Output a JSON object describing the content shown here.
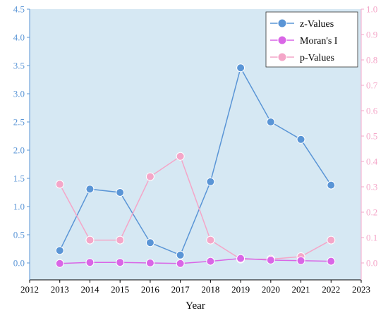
{
  "chart_data": {
    "type": "line",
    "xlabel": "Year",
    "x": [
      2013,
      2014,
      2015,
      2016,
      2017,
      2018,
      2019,
      2020,
      2021,
      2022
    ],
    "xlim": [
      2012,
      2023
    ],
    "x_ticks": [
      2012,
      2013,
      2014,
      2015,
      2016,
      2017,
      2018,
      2019,
      2020,
      2021,
      2022,
      2023
    ],
    "y_left": {
      "lim": [
        -0.3,
        4.5
      ],
      "ticks": [
        "0.0",
        "0.5",
        "1.0",
        "1.5",
        "2.0",
        "2.5",
        "3.0",
        "3.5",
        "4.0",
        "4.5"
      ],
      "color": "#5a95d6"
    },
    "y_right": {
      "lim": [
        -0.0667,
        1.0
      ],
      "ticks": [
        "0.0",
        "0.1",
        "0.2",
        "0.3",
        "0.4",
        "0.5",
        "0.6",
        "0.7",
        "0.8",
        "0.9",
        "1.0"
      ],
      "color": "#f4a6c8"
    },
    "legend_position": "top-right",
    "grid": false,
    "plot_background": "#d6e8f3",
    "series": [
      {
        "name": "z-Values",
        "axis": "left",
        "color": "#5a95d6",
        "values": [
          0.22,
          1.31,
          1.25,
          0.36,
          0.14,
          1.44,
          3.46,
          2.5,
          2.19,
          1.38
        ]
      },
      {
        "name": "p-Values",
        "axis": "right",
        "color": "#f4a6c8",
        "values": [
          0.31,
          0.09,
          0.09,
          0.34,
          0.42,
          0.09,
          0.015,
          0.015,
          0.025,
          0.09
        ]
      },
      {
        "name": "Moran's I",
        "axis": "left",
        "color": "#d966e6",
        "values": [
          -0.01,
          0.01,
          0.01,
          0.0,
          -0.01,
          0.03,
          0.08,
          0.05,
          0.04,
          0.03
        ]
      }
    ],
    "legend_order": [
      "z-Values",
      "Moran's I",
      "p-Values"
    ]
  }
}
